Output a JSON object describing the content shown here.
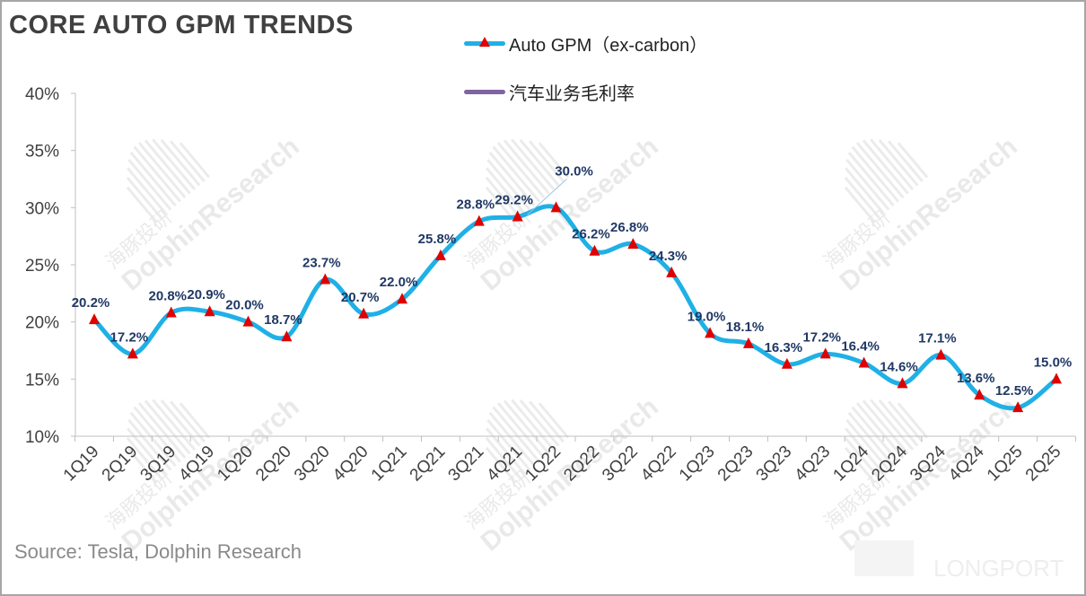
{
  "title": "CORE AUTO GPM TRENDS",
  "source": "Source: Tesla, Dolphin Research",
  "watermark": {
    "cn": "海豚投研",
    "en": "DolphinResearch",
    "brand": "LONGPORT"
  },
  "legend": [
    {
      "label": "Auto GPM（ex-carbon）",
      "color": "#1fb0e6",
      "marker": "triangle",
      "marker_color": "#e00000"
    },
    {
      "label": "汽车业务毛利率",
      "color": "#8064a2"
    }
  ],
  "chart_data": {
    "type": "line",
    "title": "CORE AUTO GPM TRENDS",
    "categories": [
      "1Q19",
      "2Q19",
      "3Q19",
      "4Q19",
      "1Q20",
      "2Q20",
      "3Q20",
      "4Q20",
      "1Q21",
      "2Q21",
      "3Q21",
      "4Q21",
      "1Q22",
      "2Q22",
      "3Q22",
      "4Q22",
      "1Q23",
      "2Q23",
      "3Q23",
      "4Q23",
      "1Q24",
      "2Q24",
      "3Q24",
      "4Q24",
      "1Q25",
      "2Q25"
    ],
    "series": [
      {
        "name": "Auto GPM（ex-carbon）",
        "values": [
          20.2,
          17.2,
          20.8,
          20.9,
          20.0,
          18.7,
          23.7,
          20.7,
          22.0,
          25.8,
          28.8,
          29.2,
          30.0,
          26.2,
          26.8,
          24.3,
          19.0,
          18.1,
          16.3,
          17.2,
          16.4,
          14.6,
          17.1,
          13.6,
          12.5,
          15.0
        ],
        "labels": [
          "20.2%",
          "17.2%",
          "20.8%",
          "20.9%",
          "20.0%",
          "18.7%",
          "23.7%",
          "20.7%",
          "22.0%",
          "25.8%",
          "28.8%",
          "29.2%",
          "30.0%",
          "26.2%",
          "26.8%",
          "24.3%",
          "19.0%",
          "18.1%",
          "16.3%",
          "17.2%",
          "16.4%",
          "14.6%",
          "17.1%",
          "13.6%",
          "12.5%",
          "15.0%"
        ]
      }
    ],
    "ylim": [
      10,
      40
    ],
    "yticks": [
      "10%",
      "15%",
      "20%",
      "25%",
      "30%",
      "35%",
      "40%"
    ],
    "ytick_values": [
      10,
      15,
      20,
      25,
      30,
      35,
      40
    ],
    "grid": false,
    "legend_position": "top"
  }
}
